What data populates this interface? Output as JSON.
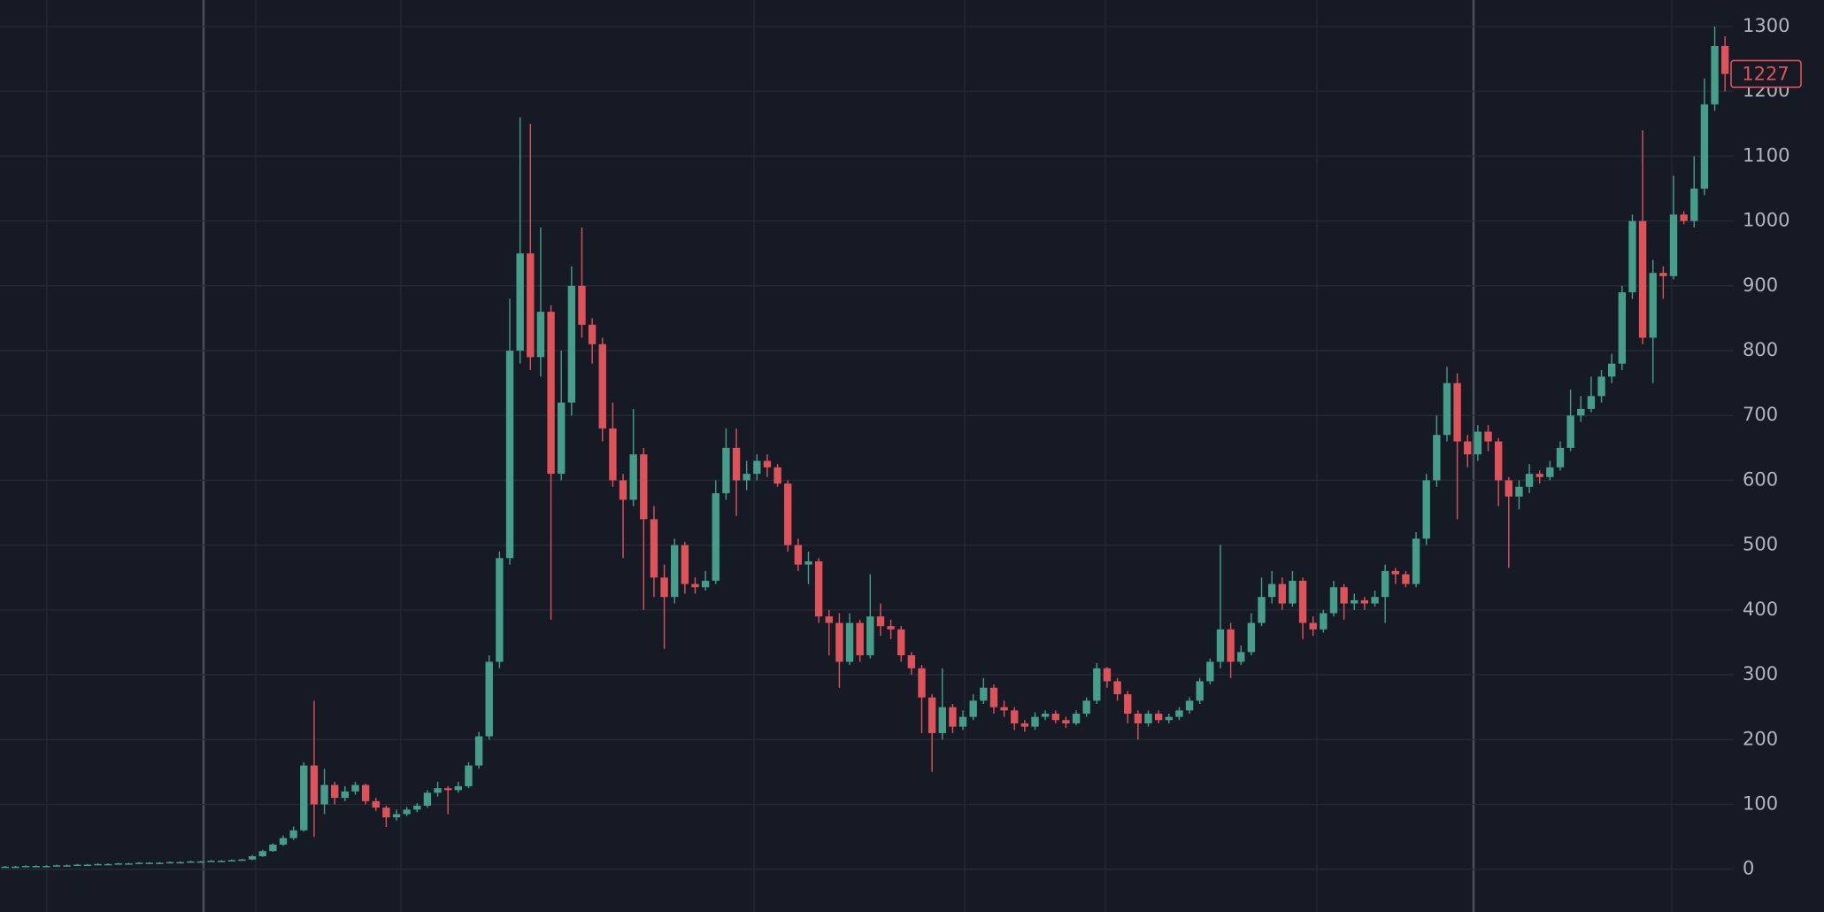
{
  "chart_data": {
    "type": "candlestick",
    "open": [
      4,
      4,
      4,
      5,
      5,
      5,
      6,
      6,
      7,
      7,
      8,
      8,
      9,
      9,
      10,
      10,
      10,
      11,
      11,
      12,
      12,
      13,
      13,
      14,
      15,
      20,
      28,
      38,
      48,
      60,
      160,
      100,
      130,
      110,
      120,
      130,
      105,
      95,
      80,
      85,
      92,
      98,
      118,
      125,
      122,
      128,
      160,
      205,
      320,
      480,
      800,
      950,
      790,
      860,
      610,
      720,
      900,
      840,
      810,
      680,
      600,
      570,
      640,
      540,
      450,
      420,
      500,
      440,
      435,
      445,
      580,
      650,
      600,
      610,
      630,
      620,
      595,
      500,
      470,
      475,
      390,
      380,
      320,
      380,
      330,
      390,
      375,
      370,
      330,
      310,
      265,
      210,
      250,
      220,
      235,
      260,
      280,
      250,
      245,
      225,
      220,
      235,
      240,
      230,
      225,
      240,
      260,
      310,
      290,
      270,
      240,
      225,
      240,
      230,
      235,
      245,
      260,
      290,
      320,
      370,
      320,
      335,
      380,
      420,
      440,
      410,
      445,
      380,
      370,
      395,
      435,
      410,
      415,
      410,
      420,
      460,
      455,
      440,
      510,
      600,
      670,
      750,
      660,
      640,
      675,
      660,
      600,
      575,
      590,
      610,
      605,
      620,
      650,
      700,
      710,
      730,
      760,
      780,
      890,
      1000,
      820,
      920,
      915,
      1010,
      1000,
      1050,
      1180,
      1270
    ],
    "high": [
      5,
      5,
      6,
      6,
      6,
      7,
      7,
      8,
      8,
      9,
      9,
      10,
      10,
      11,
      11,
      11,
      12,
      12,
      13,
      13,
      14,
      14,
      15,
      16,
      22,
      30,
      40,
      52,
      66,
      165,
      260,
      155,
      135,
      128,
      135,
      132,
      110,
      98,
      92,
      96,
      102,
      122,
      135,
      128,
      135,
      165,
      212,
      330,
      490,
      880,
      1160,
      1150,
      990,
      870,
      800,
      930,
      990,
      850,
      820,
      720,
      610,
      710,
      650,
      560,
      470,
      510,
      505,
      450,
      460,
      600,
      680,
      680,
      630,
      640,
      640,
      625,
      600,
      510,
      490,
      480,
      400,
      395,
      395,
      385,
      455,
      410,
      385,
      375,
      335,
      315,
      270,
      310,
      255,
      245,
      270,
      295,
      285,
      260,
      250,
      230,
      242,
      245,
      245,
      235,
      245,
      265,
      318,
      312,
      295,
      275,
      245,
      245,
      245,
      240,
      250,
      265,
      295,
      325,
      500,
      380,
      345,
      395,
      450,
      460,
      450,
      460,
      450,
      390,
      400,
      445,
      440,
      425,
      420,
      430,
      470,
      465,
      460,
      520,
      610,
      700,
      775,
      765,
      670,
      685,
      685,
      665,
      605,
      600,
      625,
      615,
      630,
      660,
      740,
      730,
      760,
      770,
      795,
      900,
      1010,
      1140,
      940,
      930,
      1070,
      1015,
      1100,
      1220,
      1300,
      1285
    ],
    "low": [
      3,
      3,
      4,
      4,
      4,
      5,
      5,
      6,
      6,
      7,
      7,
      8,
      8,
      9,
      9,
      9,
      10,
      10,
      11,
      11,
      12,
      12,
      13,
      13,
      14,
      19,
      27,
      36,
      45,
      58,
      50,
      85,
      100,
      105,
      115,
      100,
      90,
      65,
      75,
      82,
      88,
      95,
      112,
      85,
      118,
      125,
      155,
      200,
      310,
      470,
      780,
      770,
      760,
      385,
      600,
      700,
      820,
      780,
      660,
      590,
      480,
      560,
      400,
      420,
      340,
      410,
      425,
      425,
      430,
      440,
      570,
      545,
      585,
      600,
      605,
      590,
      490,
      460,
      440,
      380,
      330,
      280,
      315,
      320,
      325,
      360,
      355,
      320,
      300,
      210,
      150,
      200,
      210,
      215,
      230,
      255,
      240,
      235,
      215,
      212,
      215,
      230,
      225,
      218,
      222,
      235,
      255,
      280,
      260,
      225,
      200,
      220,
      225,
      225,
      230,
      240,
      255,
      285,
      310,
      295,
      315,
      330,
      375,
      410,
      400,
      405,
      355,
      360,
      365,
      390,
      385,
      400,
      400,
      405,
      380,
      440,
      435,
      435,
      500,
      590,
      660,
      540,
      620,
      630,
      645,
      560,
      465,
      555,
      580,
      595,
      600,
      615,
      645,
      690,
      705,
      720,
      750,
      770,
      880,
      810,
      750,
      880,
      910,
      995,
      990,
      1040,
      1170,
      1200
    ],
    "close": [
      4,
      4,
      5,
      5,
      5,
      6,
      6,
      7,
      7,
      8,
      8,
      9,
      9,
      10,
      10,
      10,
      11,
      11,
      12,
      12,
      13,
      13,
      14,
      15,
      20,
      28,
      38,
      48,
      60,
      160,
      100,
      130,
      110,
      120,
      130,
      105,
      95,
      80,
      85,
      92,
      98,
      118,
      125,
      122,
      128,
      160,
      205,
      320,
      480,
      800,
      950,
      790,
      860,
      610,
      720,
      900,
      840,
      810,
      680,
      600,
      570,
      640,
      540,
      450,
      420,
      500,
      440,
      435,
      445,
      580,
      650,
      600,
      610,
      630,
      620,
      595,
      500,
      470,
      475,
      390,
      380,
      320,
      380,
      330,
      390,
      375,
      370,
      330,
      310,
      265,
      210,
      250,
      220,
      235,
      260,
      280,
      250,
      245,
      225,
      220,
      235,
      240,
      230,
      225,
      240,
      260,
      310,
      290,
      270,
      240,
      225,
      240,
      230,
      235,
      245,
      260,
      290,
      320,
      370,
      320,
      335,
      380,
      420,
      440,
      410,
      445,
      380,
      370,
      395,
      435,
      410,
      415,
      410,
      420,
      460,
      455,
      440,
      510,
      600,
      670,
      750,
      660,
      640,
      675,
      660,
      600,
      575,
      590,
      610,
      605,
      620,
      650,
      700,
      710,
      730,
      760,
      780,
      890,
      1000,
      820,
      920,
      915,
      1010,
      1000,
      1050,
      1180,
      1270,
      1227
    ],
    "ylim": [
      -66,
      1341
    ],
    "yticks": [
      0,
      100,
      200,
      300,
      400,
      500,
      600,
      700,
      800,
      900,
      1000,
      1100,
      1200,
      1300
    ],
    "grid": true,
    "up_color": "#459e8a",
    "down_color": "#e0525a"
  }
}
